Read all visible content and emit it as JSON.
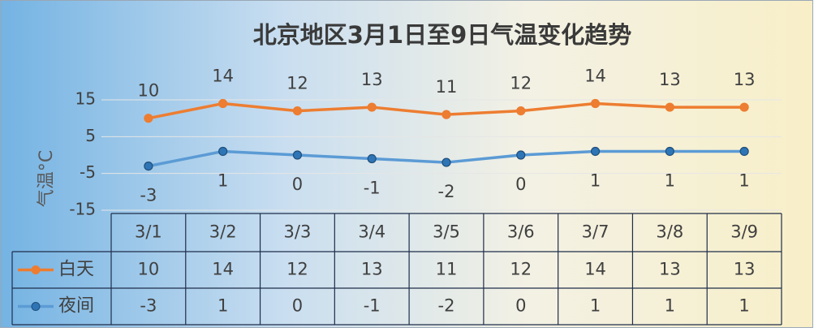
{
  "chart_data": {
    "type": "line",
    "title": "北京地区3月1日至9日气温变化趋势",
    "y_label": "气温°C",
    "categories": [
      "3/1",
      "3/2",
      "3/3",
      "3/4",
      "3/5",
      "3/6",
      "3/7",
      "3/8",
      "3/9"
    ],
    "series": [
      {
        "name": "白天",
        "color": "#ed7d31",
        "values": [
          10,
          14,
          12,
          13,
          11,
          12,
          14,
          13,
          13
        ]
      },
      {
        "name": "夜间",
        "color": "#5b9bd5",
        "values": [
          -3,
          1,
          0,
          -1,
          -2,
          0,
          1,
          1,
          1
        ]
      }
    ],
    "ylim": [
      -15,
      15
    ],
    "yticks": [
      -15,
      -5,
      5,
      15
    ],
    "grid": true,
    "data_table": true
  }
}
